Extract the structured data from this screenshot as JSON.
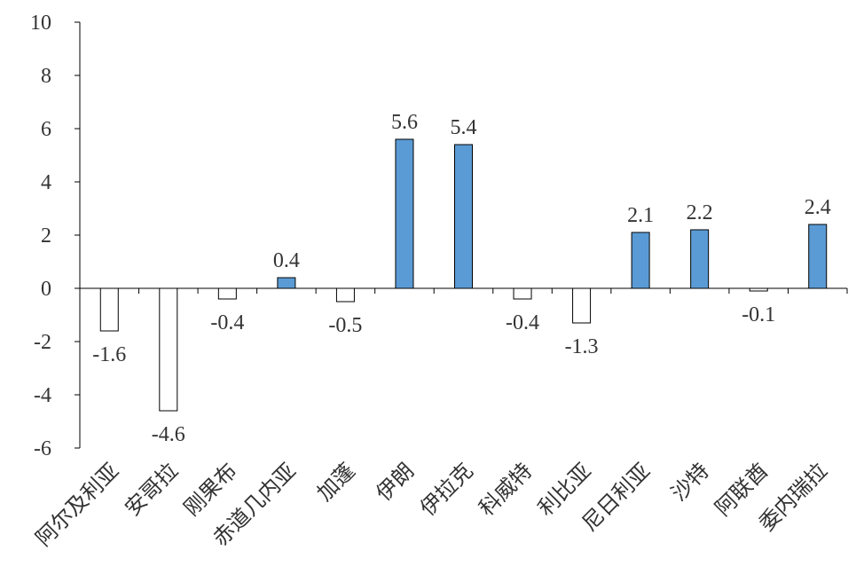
{
  "chart_data": {
    "type": "bar",
    "categories": [
      "阿尔及利亚",
      "安哥拉",
      "刚果布",
      "赤道几内亚",
      "加蓬",
      "伊朗",
      "伊拉克",
      "科威特",
      "利比亚",
      "尼日利亚",
      "沙特",
      "阿联酋",
      "委内瑞拉"
    ],
    "values": [
      -1.6,
      -4.6,
      -0.4,
      0.4,
      -0.5,
      5.6,
      5.4,
      -0.4,
      -1.3,
      2.1,
      2.2,
      -0.1,
      2.4
    ],
    "data_labels": [
      "-1.6",
      "-4.6",
      "-0.4",
      "0.4",
      "-0.5",
      "5.6",
      "5.4",
      "-0.4",
      "-1.3",
      "2.1",
      "2.2",
      "-0.1",
      "2.4"
    ],
    "ylim": [
      -6,
      10
    ],
    "yticks": [
      -6,
      -4,
      -2,
      0,
      2,
      4,
      6,
      8,
      10
    ],
    "grid": false,
    "legend": "none",
    "colors": {
      "positive": "#5b9bd5",
      "negative": "#ffffff",
      "outline": "#000000"
    }
  }
}
